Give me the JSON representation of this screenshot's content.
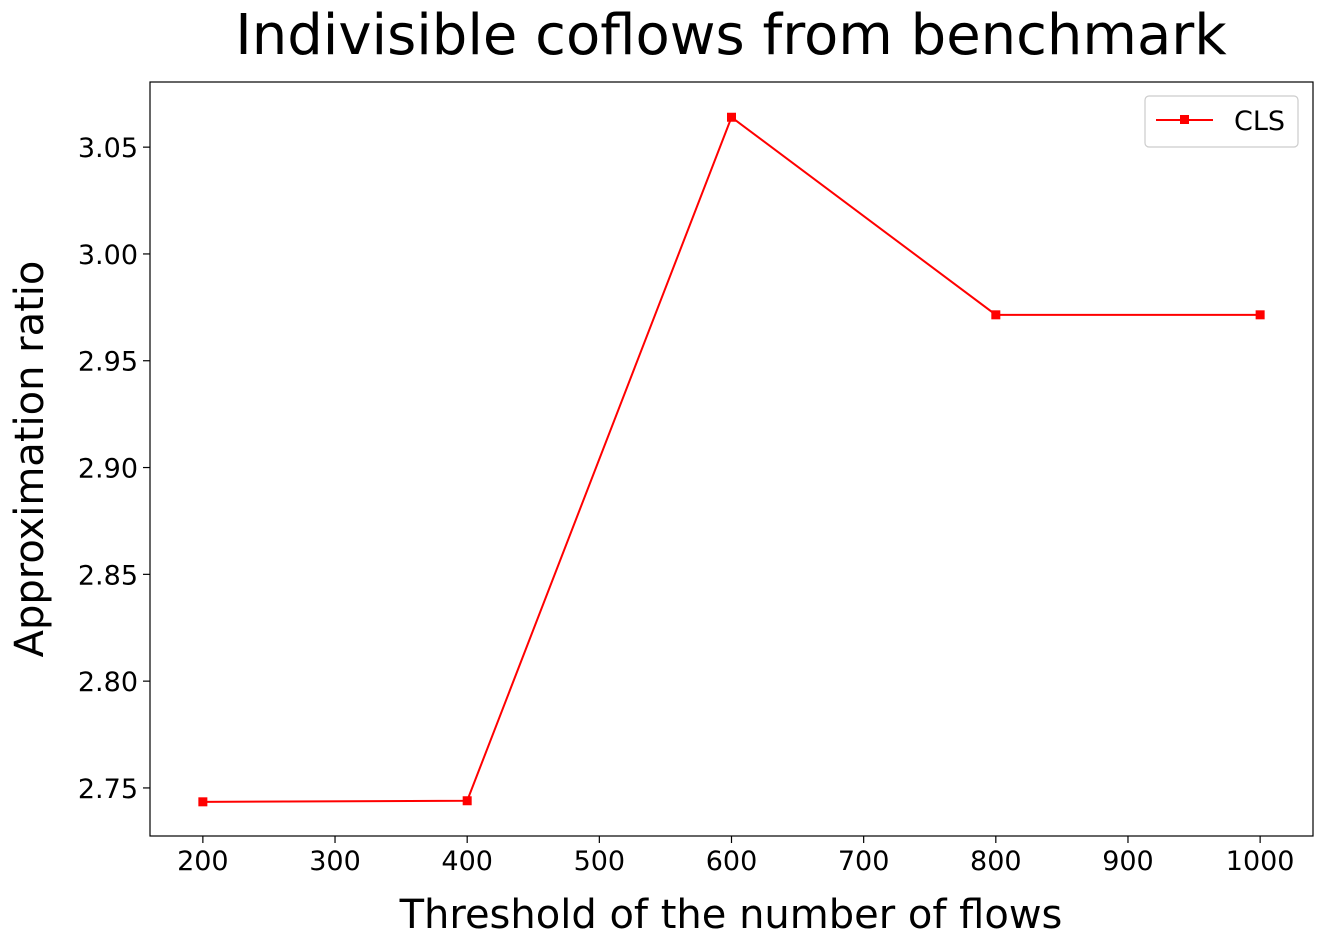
{
  "chart_data": {
    "type": "line",
    "title": "Indivisible coflows from benchmark",
    "xlabel": "Threshold of the number of flows",
    "ylabel": "Approximation ratio",
    "x": [
      200,
      400,
      600,
      800,
      1000
    ],
    "series": [
      {
        "name": "CLS",
        "color": "#ff0000",
        "marker": "square",
        "values": [
          2.7435,
          2.744,
          3.064,
          2.9715,
          2.9715
        ]
      }
    ],
    "xlim": [
      160,
      1040
    ],
    "ylim": [
      2.7275,
      3.0805
    ],
    "xticks": [
      "200",
      "300",
      "400",
      "500",
      "600",
      "700",
      "800",
      "900",
      "1000"
    ],
    "yticks": [
      "2.75",
      "2.80",
      "2.85",
      "2.90",
      "2.95",
      "3.00",
      "3.05"
    ],
    "grid": false,
    "legend_position": "top-right"
  }
}
